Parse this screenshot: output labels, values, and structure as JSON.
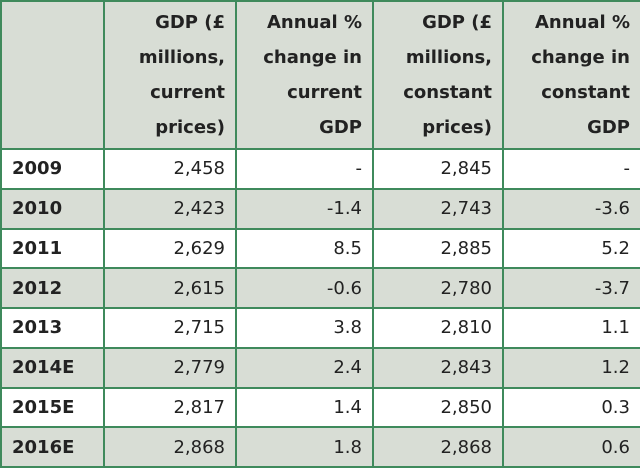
{
  "table": {
    "header": [
      "",
      "GDP (£ millions, current prices)",
      "Annual % change in current GDP",
      "GDP (£ millions, constant prices)",
      "Annual % change in constant GDP"
    ],
    "rows": [
      [
        "2009",
        "2,458",
        "-",
        "2,845",
        "-"
      ],
      [
        "2010",
        "2,423",
        "-1.4",
        "2,743",
        "-3.6"
      ],
      [
        "2011",
        "2,629",
        "8.5",
        "2,885",
        "5.2"
      ],
      [
        "2012",
        "2,615",
        "-0.6",
        "2,780",
        "-3.7"
      ],
      [
        "2013",
        "2,715",
        "3.8",
        "2,810",
        "1.1"
      ],
      [
        "2014E",
        "2,779",
        "2.4",
        "2,843",
        "1.2"
      ],
      [
        "2015E",
        "2,817",
        "1.4",
        "2,850",
        "0.3"
      ],
      [
        "2016E",
        "2,868",
        "1.8",
        "2,868",
        "0.6"
      ]
    ]
  }
}
